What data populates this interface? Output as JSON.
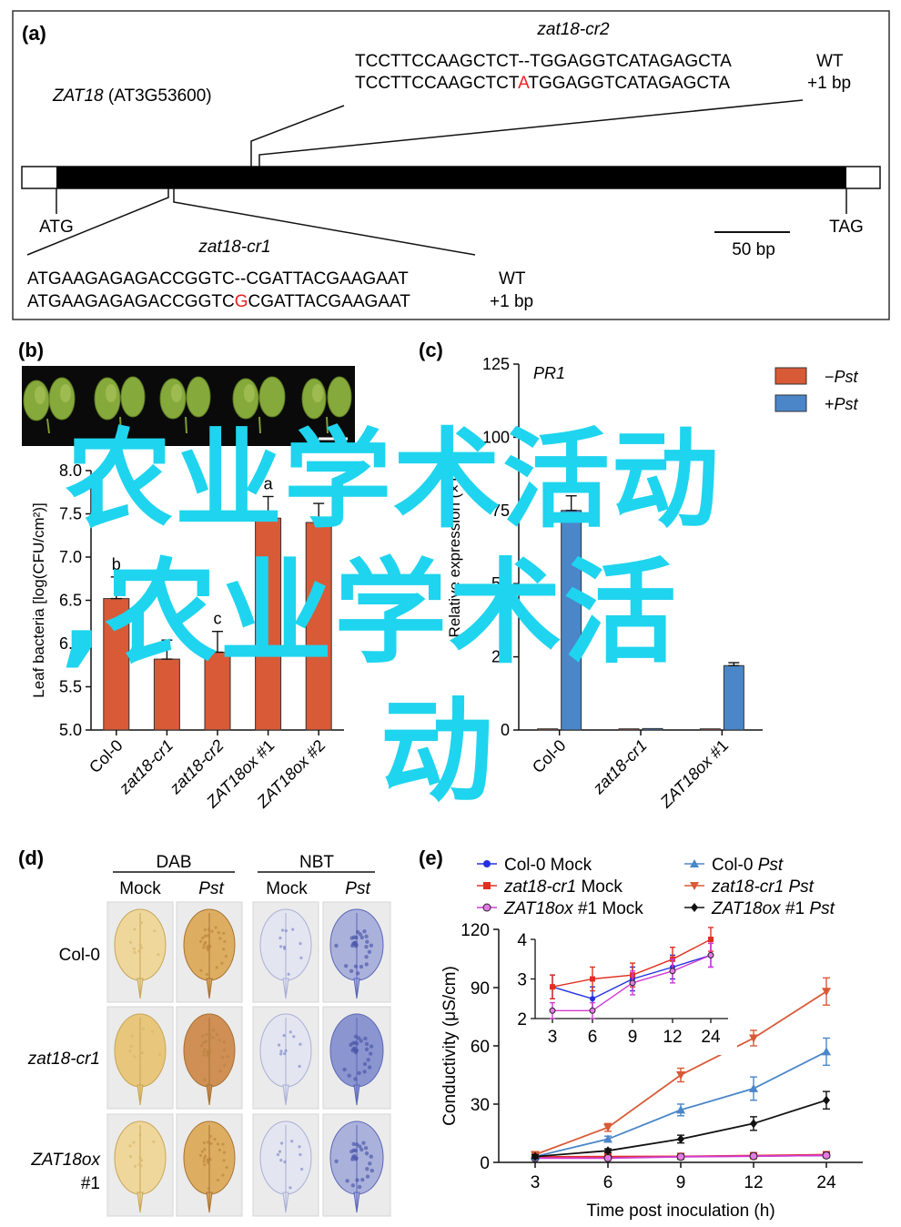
{
  "panel_a": {
    "label": "(a)",
    "gene": "ZAT18",
    "gene_id": "(AT3G53600)",
    "atg": "ATG",
    "tag": "TAG",
    "scale_bar": "50 bp",
    "cr2": {
      "title": "zat18-cr2",
      "wt_seq": "TCCTTCCAAGCTCT--TGGAGGTCATAGAGCTA",
      "mut_pre": "TCCTTCCAAGCTCT",
      "mut_ins": "A",
      "mut_post": "TGGAGGTCATAGAGCTA",
      "wt_label": "WT",
      "mut_label": "+1 bp"
    },
    "cr1": {
      "title": "zat18-cr1",
      "wt_seq": "ATGAAGAGAGACCGGTC--CGATTACGAAGAAT",
      "mut_pre": "ATGAAGAGAGACCGGTC",
      "mut_ins": "G",
      "mut_post": "CGATTACGAAGAAT",
      "wt_label": "WT",
      "mut_label": "+1 bp"
    }
  },
  "panel_b": {
    "label": "(b)",
    "chart_data": {
      "type": "bar",
      "ylabel": "Leaf bacteria [log(CFU/cm²)]",
      "ylim": [
        5.0,
        8.0
      ],
      "yticks": [
        "5.0",
        "5.5",
        "6.0",
        "6.5",
        "7.0",
        "7.5",
        "8.0"
      ],
      "categories": [
        "Col-0",
        "zat18-cr1",
        "zat18-cr2",
        "ZAT18ox #1",
        "ZAT18ox #2"
      ],
      "values": [
        6.52,
        5.82,
        5.9,
        7.45,
        7.4
      ],
      "errors": [
        0.25,
        0.22,
        0.24,
        0.25,
        0.22
      ],
      "letters": [
        "b",
        "",
        "c",
        "a",
        "a"
      ],
      "color": "#d85a37"
    }
  },
  "panel_c": {
    "label": "(c)",
    "chart_data": {
      "type": "bar",
      "title": "PR1",
      "ylabel": "Relative expression (×10²)",
      "ylim": [
        0,
        125
      ],
      "yticks": [
        "0",
        "25",
        "50",
        "75",
        "100",
        "125"
      ],
      "categories": [
        "Col-0",
        "zat18-cr1",
        "ZAT18ox #1"
      ],
      "series": [
        {
          "name": "−Pst",
          "values": [
            0.4,
            0.4,
            0.4
          ],
          "errors": [
            0,
            0,
            0
          ],
          "color": "#d85a37"
        },
        {
          "name": "+Pst",
          "values": [
            75,
            0.5,
            22
          ],
          "errors": [
            5,
            0,
            1
          ],
          "color": "#4a86c8"
        }
      ],
      "legend": [
        {
          "sign": "−",
          "name": "Pst"
        },
        {
          "sign": "+",
          "name": "Pst"
        }
      ],
      "legend_position": "top-right"
    }
  },
  "panel_d": {
    "label": "(d)",
    "groups": [
      "DAB",
      "NBT"
    ],
    "columns": [
      "Mock",
      "Pst",
      "Mock",
      "Pst"
    ],
    "rows": [
      "Col-0",
      "zat18-cr1",
      "ZAT18ox",
      "#1"
    ]
  },
  "panel_e": {
    "label": "(e)",
    "chart_data": {
      "type": "line",
      "xlabel": "Time post inoculation (h)",
      "ylabel": "Conductivity (μS/cm)",
      "x": [
        3,
        6,
        9,
        12,
        24
      ],
      "xticks": [
        "3",
        "6",
        "9",
        "12",
        "24"
      ],
      "ylim": [
        0,
        120
      ],
      "yticks": [
        "0",
        "30",
        "60",
        "90",
        "120"
      ],
      "series": [
        {
          "name": "Col-0 Mock",
          "values": [
            2.8,
            2.5,
            3.0,
            3.3,
            3.6
          ],
          "errors": [
            0.3,
            0.3,
            0.3,
            0.3,
            0.3
          ],
          "color": "#2430e0",
          "marker": "circle"
        },
        {
          "name": "zat18-cr1 Mock",
          "values": [
            2.8,
            3.0,
            3.1,
            3.5,
            4.0
          ],
          "errors": [
            0.3,
            0.3,
            0.3,
            0.3,
            0.3
          ],
          "color": "#e03020",
          "marker": "square"
        },
        {
          "name": "ZAT18ox #1 Mock",
          "values": [
            2.2,
            2.2,
            2.9,
            3.2,
            3.6
          ],
          "errors": [
            0.2,
            0.2,
            0.3,
            0.3,
            0.3
          ],
          "color": "#d23ad2",
          "marker": "circle-open"
        },
        {
          "name": "Col-0 Pst",
          "values": [
            3,
            12,
            27,
            38,
            57
          ],
          "errors": [
            1,
            1.5,
            3,
            6,
            7
          ],
          "color": "#4a86c8",
          "marker": "triangle-up"
        },
        {
          "name": "zat18-cr1 Pst",
          "values": [
            4,
            18,
            45,
            64,
            88
          ],
          "errors": [
            1,
            2,
            3.5,
            4,
            7
          ],
          "color": "#d85a37",
          "marker": "triangle-down"
        },
        {
          "name": "ZAT18ox #1 Pst",
          "values": [
            3,
            6,
            12,
            20,
            32
          ],
          "errors": [
            1,
            1,
            2,
            3.5,
            4.5
          ],
          "color": "#111111",
          "marker": "diamond"
        }
      ],
      "legend": [
        {
          "italic": "",
          "rest": "Col-0 Mock"
        },
        {
          "italic": "zat18-cr1",
          "rest": " Mock"
        },
        {
          "italic": "ZAT18ox",
          "rest": " #1 Mock"
        },
        {
          "italic": "",
          "rest": "Col-0 ",
          "italic2": "Pst"
        },
        {
          "italic": "zat18-cr1",
          "rest": " ",
          "italic2": "Pst"
        },
        {
          "italic": "ZAT18ox",
          "rest": " #1 ",
          "italic2": "Pst"
        }
      ],
      "inset": {
        "ylim": [
          2,
          4
        ],
        "yticks": [
          "2",
          "3",
          "4"
        ],
        "xticks": [
          "3",
          "6",
          "9",
          "12",
          "24"
        ]
      }
    }
  },
  "overlay": {
    "line1": "农业学术活动",
    "line2": ",农业学术活",
    "line3": "动",
    "color": "#1fd4ee"
  }
}
